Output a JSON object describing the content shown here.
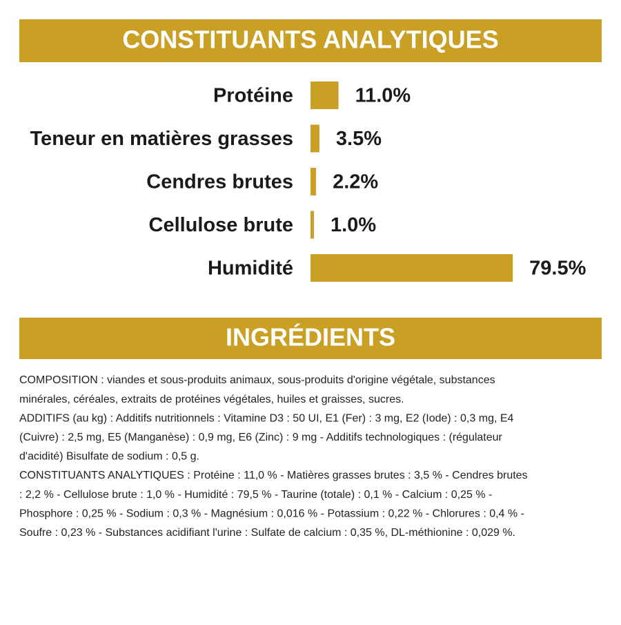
{
  "chart_data": {
    "type": "bar",
    "title": "CONSTITUANTS ANALYTIQUES",
    "categories": [
      "Protéine",
      "Teneur en matières grasses",
      "Cendres brutes",
      "Cellulose brute",
      "Humidité"
    ],
    "values": [
      11.0,
      3.5,
      2.2,
      1.0,
      79.5
    ],
    "value_labels": [
      "11.0%",
      "3.5%",
      "2.2%",
      "1.0%",
      "79.5%"
    ],
    "color": "#c9a024"
  },
  "ingredients": {
    "title": "INGRÉDIENTS",
    "lines": [
      "COMPOSITION : viandes et sous-produits animaux, sous-produits d'origine végétale, substances",
      "minérales, céréales, extraits de protéines végétales, huiles et graisses, sucres.",
      "ADDITIFS (au kg) : Additifs nutritionnels : Vitamine D3 : 50 UI, E1 (Fer) : 3 mg, E2 (Iode) : 0,3 mg, E4",
      "(Cuivre) : 2,5 mg, E5 (Manganèse) : 0,9 mg, E6 (Zinc) : 9 mg - Additifs technologiques : (régulateur",
      "d'acidité) Bisulfate de sodium : 0,5 g.",
      "CONSTITUANTS ANALYTIQUES : Protéine : 11,0 % - Matières grasses brutes : 3,5 % - Cendres brutes",
      ": 2,2 % - Cellulose brute : 1,0 % - Humidité : 79,5 % - Taurine (totale) : 0,1 % - Calcium : 0,25 % -",
      "Phosphore : 0,25 % - Sodium : 0,3 % - Magnésium : 0,016 % - Potassium : 0,22 % - Chlorures : 0,4 % -",
      "Soufre : 0,23 % - Substances acidifiant l'urine : Sulfate de calcium : 0,35 %, DL-méthionine : 0,029 %."
    ]
  }
}
